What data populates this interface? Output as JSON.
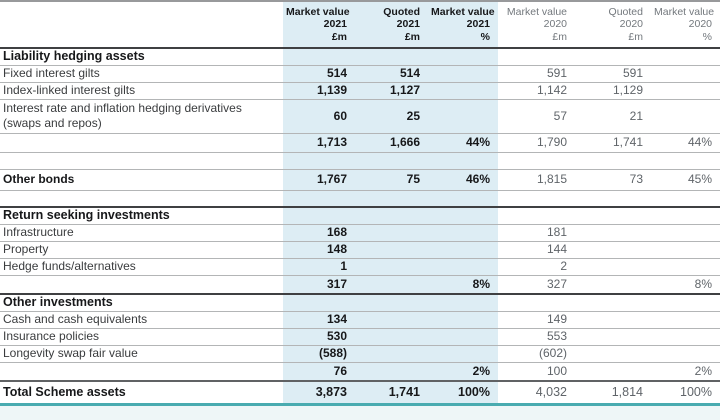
{
  "table": {
    "columns": [
      {
        "lines": [
          "Market value",
          "2021",
          "£m"
        ],
        "year": "2021"
      },
      {
        "lines": [
          "Quoted",
          "2021",
          "£m"
        ],
        "year": "2021"
      },
      {
        "lines": [
          "Market value",
          "2021",
          "%"
        ],
        "year": "2021"
      },
      {
        "lines": [
          "Market value",
          "2020",
          "£m"
        ],
        "year": "2020"
      },
      {
        "lines": [
          "Quoted",
          "2020",
          "£m"
        ],
        "year": "2020"
      },
      {
        "lines": [
          "Market value",
          "2020",
          "%"
        ],
        "year": "2020"
      }
    ],
    "rows": [
      {
        "type": "section",
        "label": "Liability hedging assets",
        "values": [
          "",
          "",
          "",
          "",
          "",
          ""
        ]
      },
      {
        "type": "item",
        "label": "Fixed interest gilts",
        "values": [
          "514",
          "514",
          "",
          "591",
          "591",
          ""
        ]
      },
      {
        "type": "item",
        "label": "Index-linked interest gilts",
        "values": [
          "1,139",
          "1,127",
          "",
          "1,142",
          "1,129",
          ""
        ]
      },
      {
        "type": "item2",
        "label": "Interest rate and inflation hedging derivatives (swaps and repos)",
        "values": [
          "60",
          "25",
          "",
          "57",
          "21",
          ""
        ]
      },
      {
        "type": "subtotal",
        "label": "",
        "values": [
          "1,713",
          "1,666",
          "44%",
          "1,790",
          "1,741",
          "44%"
        ]
      },
      {
        "type": "spacer",
        "label": "",
        "values": [
          "",
          "",
          "",
          "",
          "",
          ""
        ]
      },
      {
        "type": "bolditem",
        "label": "Other bonds",
        "values": [
          "1,767",
          "75",
          "46%",
          "1,815",
          "73",
          "45%"
        ]
      },
      {
        "type": "spacer",
        "label": "",
        "values": [
          "",
          "",
          "",
          "",
          "",
          ""
        ]
      },
      {
        "type": "section",
        "label": "Return seeking investments",
        "values": [
          "",
          "",
          "",
          "",
          "",
          ""
        ]
      },
      {
        "type": "item",
        "label": "Infrastructure",
        "values": [
          "168",
          "",
          "",
          "181",
          "",
          ""
        ]
      },
      {
        "type": "item",
        "label": "Property",
        "values": [
          "148",
          "",
          "",
          "144",
          "",
          ""
        ]
      },
      {
        "type": "item",
        "label": "Hedge funds/alternatives",
        "values": [
          "1",
          "",
          "",
          "2",
          "",
          ""
        ]
      },
      {
        "type": "subtotal",
        "label": "",
        "values": [
          "317",
          "",
          "8%",
          "327",
          "",
          "8%"
        ]
      },
      {
        "type": "section",
        "label": "Other investments",
        "values": [
          "",
          "",
          "",
          "",
          "",
          ""
        ]
      },
      {
        "type": "item",
        "label": "Cash and cash equivalents",
        "values": [
          "134",
          "",
          "",
          "149",
          "",
          ""
        ]
      },
      {
        "type": "item",
        "label": "Insurance policies",
        "values": [
          "530",
          "",
          "",
          "553",
          "",
          ""
        ]
      },
      {
        "type": "item",
        "label": "Longevity swap fair value",
        "values": [
          "(588)",
          "",
          "",
          "(602)",
          "",
          ""
        ]
      },
      {
        "type": "subtotal",
        "label": "",
        "values": [
          "76",
          "",
          "2%",
          "100",
          "",
          "2%"
        ]
      },
      {
        "type": "total",
        "label": "Total Scheme assets",
        "values": [
          "3,873",
          "1,741",
          "100%",
          "4,032",
          "1,814",
          "100%"
        ]
      }
    ]
  },
  "colors": {
    "band_bg": "#ddedf4",
    "teal_rule": "#49abb0",
    "section_border": "#3f4042",
    "row_border": "#b3b5b6",
    "ink": "#17181a",
    "muted_values": "#5f6469"
  }
}
